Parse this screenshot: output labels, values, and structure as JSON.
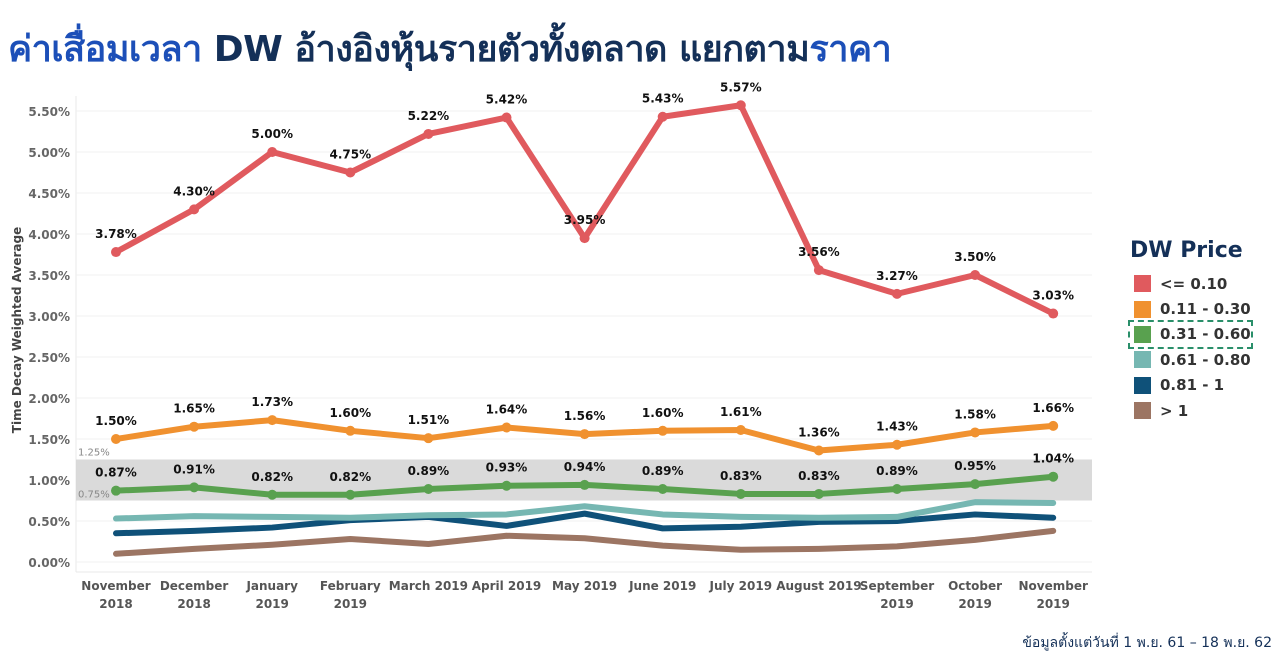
{
  "title": {
    "part1": "ค่าเสื่อมเวลา",
    "part2": " DW อ้างอิงหุ้นรายตัวทั้งตลาด แยกตาม",
    "part3": "ราคา"
  },
  "footnote": "ข้อมูลตั้งแต่วันที่ 1 พ.ย. 61 – 18 พ.ย. 62",
  "chart_data": {
    "type": "line",
    "ylabel": "Time Decay Weighted Average",
    "ylim": [
      0,
      4.7
    ],
    "yticks": [
      "0.00%",
      "0.50%",
      "1.00%",
      "1.50%",
      "2.00%",
      "2.50%",
      "3.00%",
      "3.50%",
      "4.00%",
      "4.50%",
      "5.00%",
      "5.50%"
    ],
    "band": {
      "from": 0.75,
      "to": 1.25,
      "label_low": "0.75%",
      "label_high": "1.25%"
    },
    "categories": [
      [
        "November",
        "2018"
      ],
      [
        "December",
        "2018"
      ],
      [
        "January",
        "2019"
      ],
      [
        "February",
        "2019"
      ],
      [
        "March 2019",
        ""
      ],
      [
        "April 2019",
        ""
      ],
      [
        "May 2019",
        ""
      ],
      [
        "June 2019",
        ""
      ],
      [
        "July 2019",
        ""
      ],
      [
        "August 2019",
        ""
      ],
      [
        "September",
        "2019"
      ],
      [
        "October",
        "2019"
      ],
      [
        "November",
        "2019"
      ]
    ],
    "series": [
      {
        "name": "<= 0.10",
        "color": "#e05a5e",
        "labels": true,
        "values": [
          3.78,
          4.3,
          5.0,
          4.75,
          5.22,
          5.42,
          3.95,
          5.43,
          5.57,
          3.56,
          3.27,
          3.5,
          3.03
        ]
      },
      {
        "name": "0.11 - 0.30",
        "color": "#f0912f",
        "labels": true,
        "values": [
          1.5,
          1.65,
          1.73,
          1.6,
          1.51,
          1.64,
          1.56,
          1.6,
          1.61,
          1.36,
          1.43,
          1.58,
          1.66
        ]
      },
      {
        "name": "0.31 - 0.60",
        "color": "#59a14f",
        "labels": true,
        "selected": true,
        "values": [
          0.87,
          0.91,
          0.82,
          0.82,
          0.89,
          0.93,
          0.94,
          0.89,
          0.83,
          0.83,
          0.89,
          0.95,
          1.04
        ]
      },
      {
        "name": "0.61 - 0.80",
        "color": "#76b7b2",
        "labels": false,
        "values": [
          0.53,
          0.56,
          0.55,
          0.54,
          0.57,
          0.58,
          0.68,
          0.58,
          0.55,
          0.54,
          0.55,
          0.73,
          0.72
        ]
      },
      {
        "name": "0.81 - 1",
        "color": "#0f5179",
        "labels": false,
        "values": [
          0.35,
          0.38,
          0.42,
          0.51,
          0.55,
          0.44,
          0.59,
          0.41,
          0.43,
          0.49,
          0.5,
          0.58,
          0.54
        ]
      },
      {
        "name": "> 1",
        "color": "#9c7563",
        "labels": false,
        "values": [
          0.1,
          0.16,
          0.21,
          0.28,
          0.22,
          0.32,
          0.29,
          0.2,
          0.15,
          0.16,
          0.19,
          0.27,
          0.38
        ]
      }
    ]
  },
  "legend": {
    "title": "DW Price",
    "items": [
      {
        "label": "<= 0.10",
        "color": "#e05a5e"
      },
      {
        "label": "0.11 - 0.30",
        "color": "#f0912f"
      },
      {
        "label": "0.31 - 0.60",
        "color": "#59a14f",
        "selected": true
      },
      {
        "label": "0.61 - 0.80",
        "color": "#76b7b2"
      },
      {
        "label": "0.81 - 1",
        "color": "#0f5179"
      },
      {
        "label": "> 1",
        "color": "#9c7563"
      }
    ]
  }
}
